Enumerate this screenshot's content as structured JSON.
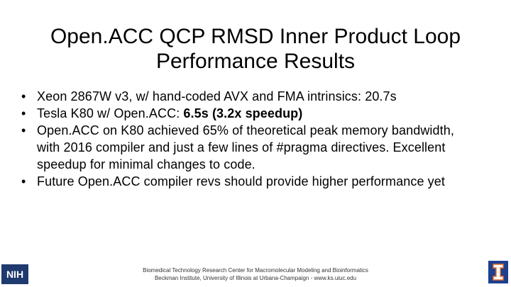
{
  "title_lines": [
    "Open.ACC QCP RMSD Inner Product Loop",
    "Performance Results"
  ],
  "bullets": [
    {
      "text": "Xeon 2867W v3, w/ hand-coded AVX and FMA intrinsics: 20.7s"
    },
    {
      "text": "Tesla K80 w/ Open.ACC:",
      "bold": "6.5s  (3.2x speedup)"
    },
    {
      "text": "Open.ACC on K80 achieved 65% of theoretical peak memory bandwidth, with 2016 compiler and just a few lines of #pragma directives.  Excellent speedup for minimal changes to code."
    },
    {
      "text": "Future Open.ACC compiler revs should provide higher performance yet"
    }
  ],
  "footer_lines": [
    "Biomedical Technology Research Center for Macromolecular Modeling and Bioinformatics",
    "Beckman Institute, University of Illinois at Urbana-Champaign - www.ks.uiuc.edu"
  ],
  "logo_left": "NIH"
}
